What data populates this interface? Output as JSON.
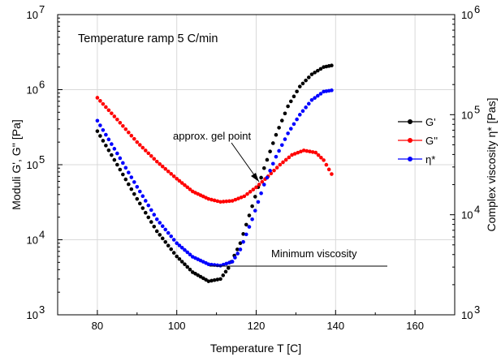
{
  "chart_data": {
    "type": "scatter",
    "title": "Temperature ramp 5 C/min",
    "xlabel": "Temperature T [C]",
    "ylabel_left": "Moduli G', G'' [Pa]",
    "ylabel_right": "Complex viscosity η* [Pas]",
    "xlim": [
      70,
      170
    ],
    "ylim_left": [
      1000,
      10000000
    ],
    "ylim_right": [
      1000,
      1000000
    ],
    "yscale": "log",
    "grid": true,
    "x_ticks": [
      80,
      100,
      120,
      140,
      160
    ],
    "y_left_ticks": [
      {
        "base": "10",
        "exp": "3"
      },
      {
        "base": "10",
        "exp": "4"
      },
      {
        "base": "10",
        "exp": "5"
      },
      {
        "base": "10",
        "exp": "6"
      },
      {
        "base": "10",
        "exp": "7"
      }
    ],
    "y_right_ticks": [
      {
        "base": "10",
        "exp": "3"
      },
      {
        "base": "10",
        "exp": "4"
      },
      {
        "base": "10",
        "exp": "5"
      },
      {
        "base": "10",
        "exp": "6"
      }
    ],
    "legend_position": "right-middle",
    "series": [
      {
        "name": "G'",
        "color": "#000000",
        "axis": "left",
        "points": [
          [
            80,
            280000
          ],
          [
            85,
            100000
          ],
          [
            90,
            35000
          ],
          [
            95,
            13000
          ],
          [
            100,
            6000
          ],
          [
            104,
            3700
          ],
          [
            108,
            2800
          ],
          [
            111,
            3000
          ],
          [
            113,
            4200
          ],
          [
            116,
            9000
          ],
          [
            119,
            28000
          ],
          [
            122,
            90000
          ],
          [
            125,
            250000
          ],
          [
            128,
            600000
          ],
          [
            131,
            1100000
          ],
          [
            134,
            1600000
          ],
          [
            137,
            2000000
          ],
          [
            139,
            2100000
          ]
        ]
      },
      {
        "name": "G''",
        "color": "#ff0000",
        "axis": "left",
        "points": [
          [
            80,
            780000
          ],
          [
            85,
            400000
          ],
          [
            90,
            200000
          ],
          [
            95,
            110000
          ],
          [
            100,
            65000
          ],
          [
            104,
            44000
          ],
          [
            108,
            35000
          ],
          [
            111,
            32000
          ],
          [
            114,
            33000
          ],
          [
            117,
            38000
          ],
          [
            120,
            50000
          ],
          [
            123,
            70000
          ],
          [
            126,
            100000
          ],
          [
            129,
            135000
          ],
          [
            132,
            155000
          ],
          [
            135,
            145000
          ],
          [
            137,
            115000
          ],
          [
            139,
            75000
          ]
        ]
      },
      {
        "name": "η*",
        "color": "#0000ff",
        "axis": "right",
        "points": [
          [
            80,
            87000
          ],
          [
            85,
            41000
          ],
          [
            90,
            19000
          ],
          [
            95,
            9000
          ],
          [
            100,
            5200
          ],
          [
            104,
            3800
          ],
          [
            108,
            3200
          ],
          [
            111,
            3100
          ],
          [
            114,
            3400
          ],
          [
            116,
            4500
          ],
          [
            119,
            9000
          ],
          [
            122,
            20000
          ],
          [
            125,
            38000
          ],
          [
            128,
            65000
          ],
          [
            131,
            100000
          ],
          [
            134,
            140000
          ],
          [
            137,
            170000
          ],
          [
            139,
            175000
          ]
        ]
      }
    ],
    "annotations": [
      {
        "text": "approx. gel point",
        "at": [
          121,
          70000
        ]
      },
      {
        "text": "Minimum viscosity",
        "at": [
          111,
          3100
        ]
      }
    ]
  }
}
